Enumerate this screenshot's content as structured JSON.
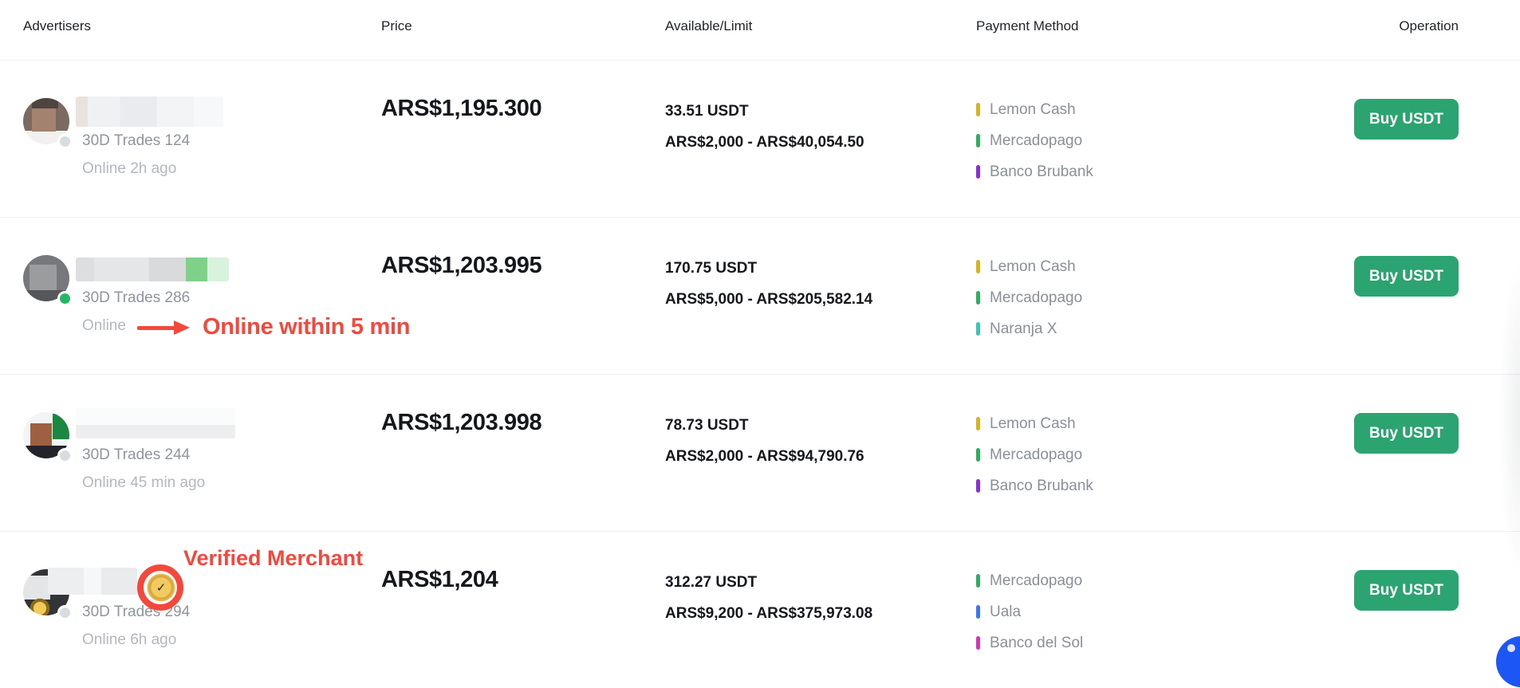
{
  "table": {
    "headers": {
      "advertisers": "Advertisers",
      "price": "Price",
      "available_limit": "Available/Limit",
      "payment_method": "Payment Method",
      "operation": "Operation"
    }
  },
  "annotations": {
    "online_within_5min": "Online within 5 min",
    "verified_merchant": "Verified Merchant",
    "badge_check": "✓"
  },
  "colors": {
    "buy_button_green": "#2BA471",
    "annotation_red": "#F5483C",
    "online_dot_green": "#25B864",
    "offline_dot_grey": "#D9DCDF",
    "chat_fab_blue": "#1E55F5"
  },
  "rows": [
    {
      "trades": "30D Trades 124",
      "status": "Online 2h ago",
      "online_dot": "grey",
      "price": "ARS$1,195.300",
      "available": "33.51 USDT",
      "limit": "ARS$2,000 - ARS$40,054.50",
      "payments": [
        {
          "name": "Lemon Cash",
          "color": "#D8B223"
        },
        {
          "name": "Mercadopago",
          "color": "#2FAD60"
        },
        {
          "name": "Banco Brubank",
          "color": "#8E2ED6"
        }
      ],
      "action": "Buy USDT",
      "has_online_annotation": false,
      "has_verified_annotation": false
    },
    {
      "trades": "30D Trades 286",
      "status": "Online",
      "online_dot": "green",
      "price": "ARS$1,203.995",
      "available": "170.75 USDT",
      "limit": "ARS$5,000 - ARS$205,582.14",
      "payments": [
        {
          "name": "Lemon Cash",
          "color": "#D8B223"
        },
        {
          "name": "Mercadopago",
          "color": "#2FAD60"
        },
        {
          "name": "Naranja X",
          "color": "#3FC4AE"
        }
      ],
      "action": "Buy USDT",
      "has_online_annotation": true,
      "has_verified_annotation": false
    },
    {
      "trades": "30D Trades 244",
      "status": "Online 45 min ago",
      "online_dot": "grey",
      "price": "ARS$1,203.998",
      "available": "78.73 USDT",
      "limit": "ARS$2,000 - ARS$94,790.76",
      "payments": [
        {
          "name": "Lemon Cash",
          "color": "#D8B223"
        },
        {
          "name": "Mercadopago",
          "color": "#2FAD60"
        },
        {
          "name": "Banco Brubank",
          "color": "#8E2ED6"
        }
      ],
      "action": "Buy USDT",
      "has_online_annotation": false,
      "has_verified_annotation": false
    },
    {
      "trades": "30D Trades 294",
      "status": "Online 6h ago",
      "online_dot": "grey",
      "price": "ARS$1,204",
      "available": "312.27 USDT",
      "limit": "ARS$9,200 - ARS$375,973.08",
      "payments": [
        {
          "name": "Mercadopago",
          "color": "#2FAD60"
        },
        {
          "name": "Uala",
          "color": "#3D76F2"
        },
        {
          "name": "Banco del Sol",
          "color": "#D237B8"
        }
      ],
      "action": "Buy USDT",
      "has_online_annotation": false,
      "has_verified_annotation": true
    }
  ]
}
